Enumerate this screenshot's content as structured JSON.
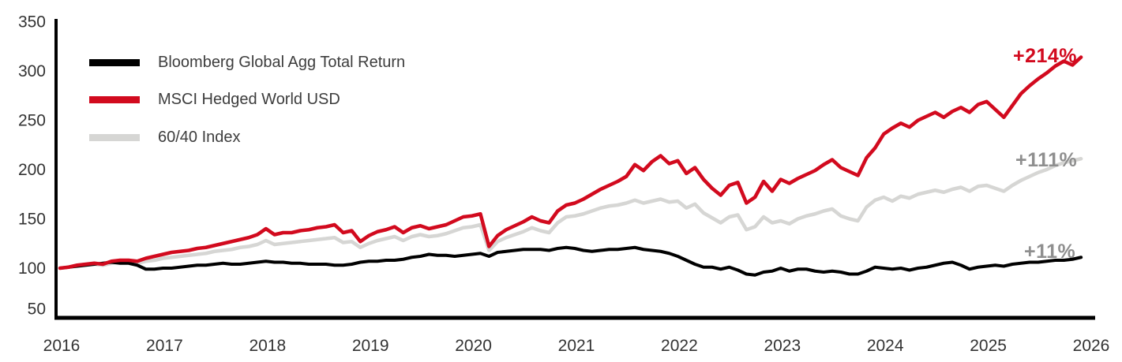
{
  "chart_data": {
    "type": "line",
    "title": "",
    "xlabel": "",
    "ylabel": "",
    "grid": false,
    "legend_position": "top-left",
    "ylim": [
      50,
      350
    ],
    "y_ticks": [
      350,
      300,
      250,
      200,
      150,
      100,
      50
    ],
    "x_ticks": [
      "2016",
      "2017",
      "2018",
      "2019",
      "2020",
      "2021",
      "2022",
      "2023",
      "2024",
      "2025",
      "2026"
    ],
    "x_start_year": 2016,
    "points_per_year": 12,
    "index_base_value": 100,
    "axis_color": "#000000",
    "series": [
      {
        "name": "Bloomberg Global Agg Total Return",
        "color": "#000000",
        "final_return_label": "+11%",
        "values": [
          100,
          101,
          102,
          103,
          104,
          105,
          106,
          105,
          105,
          103,
          99,
          99,
          100,
          100,
          101,
          102,
          103,
          103,
          104,
          105,
          104,
          104,
          105,
          106,
          107,
          106,
          106,
          105,
          105,
          104,
          104,
          104,
          103,
          103,
          104,
          106,
          107,
          107,
          108,
          108,
          109,
          111,
          112,
          114,
          113,
          113,
          112,
          113,
          114,
          115,
          112,
          116,
          117,
          118,
          119,
          119,
          119,
          118,
          120,
          121,
          120,
          118,
          117,
          118,
          119,
          119,
          120,
          121,
          119,
          118,
          117,
          115,
          112,
          108,
          104,
          101,
          101,
          99,
          101,
          98,
          94,
          93,
          96,
          97,
          100,
          97,
          99,
          99,
          97,
          96,
          97,
          96,
          94,
          94,
          97,
          101,
          100,
          99,
          100,
          98,
          100,
          101,
          103,
          105,
          106,
          103,
          99,
          101,
          102,
          103,
          102,
          104,
          105,
          106,
          106,
          107,
          108,
          108,
          109,
          111
        ]
      },
      {
        "name": "MSCI Hedged World USD",
        "color": "#d20a1e",
        "final_return_label": "+214%",
        "values": [
          100,
          101,
          103,
          104,
          105,
          104,
          107,
          108,
          108,
          107,
          110,
          112,
          114,
          116,
          117,
          118,
          120,
          121,
          123,
          125,
          127,
          129,
          131,
          134,
          140,
          134,
          136,
          136,
          138,
          139,
          141,
          142,
          144,
          136,
          138,
          127,
          133,
          137,
          139,
          142,
          136,
          141,
          143,
          140,
          142,
          144,
          148,
          152,
          153,
          155,
          122,
          133,
          139,
          143,
          147,
          152,
          148,
          146,
          158,
          164,
          166,
          170,
          175,
          180,
          184,
          188,
          193,
          205,
          199,
          208,
          214,
          206,
          209,
          196,
          202,
          190,
          181,
          174,
          184,
          187,
          166,
          172,
          188,
          178,
          190,
          186,
          191,
          195,
          199,
          205,
          210,
          202,
          198,
          194,
          212,
          222,
          236,
          242,
          247,
          243,
          250,
          254,
          258,
          253,
          259,
          263,
          258,
          266,
          269,
          261,
          253,
          265,
          277,
          285,
          292,
          298,
          305,
          310,
          306,
          314
        ]
      },
      {
        "name": "60/40 Index",
        "color": "#d6d6d4",
        "final_return_label": "+111%",
        "values": [
          100,
          101,
          102,
          103,
          104,
          103,
          105,
          106,
          106,
          105,
          107,
          108,
          110,
          111,
          112,
          113,
          114,
          115,
          117,
          118,
          119,
          121,
          122,
          124,
          128,
          124,
          125,
          126,
          127,
          128,
          129,
          130,
          131,
          126,
          127,
          121,
          125,
          128,
          130,
          132,
          128,
          132,
          134,
          132,
          133,
          135,
          138,
          141,
          142,
          144,
          118,
          127,
          131,
          134,
          137,
          141,
          138,
          136,
          146,
          152,
          153,
          155,
          158,
          161,
          163,
          164,
          166,
          169,
          166,
          168,
          170,
          167,
          168,
          161,
          165,
          156,
          151,
          146,
          152,
          154,
          139,
          142,
          152,
          146,
          148,
          145,
          150,
          153,
          155,
          158,
          160,
          153,
          150,
          148,
          162,
          169,
          172,
          168,
          173,
          171,
          175,
          177,
          179,
          177,
          180,
          182,
          178,
          183,
          184,
          181,
          178,
          184,
          189,
          193,
          197,
          200,
          204,
          207,
          209,
          211
        ]
      }
    ],
    "annotations": [
      {
        "label": "+214%",
        "color": "#d20a1e",
        "series": "MSCI Hedged World USD"
      },
      {
        "label": "+111%",
        "color": "#8f8f8f",
        "series": "60/40 Index"
      },
      {
        "label": "+11%",
        "color": "#8f8f8f",
        "series": "Bloomberg Global Agg Total Return"
      }
    ]
  }
}
